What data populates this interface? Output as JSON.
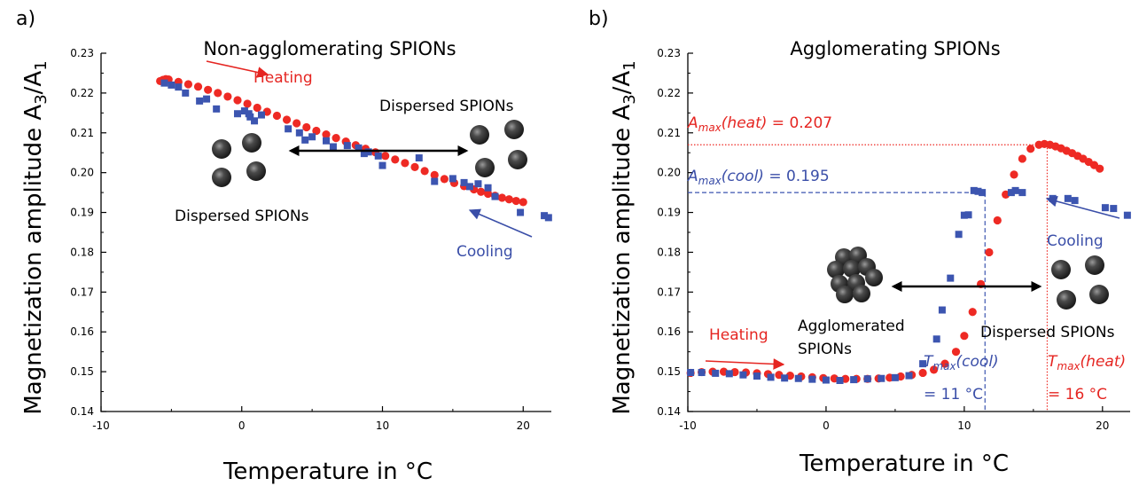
{
  "colors": {
    "heating": "#ee2a24",
    "cooling": "#3c55b0",
    "annotation_red": "#e52521",
    "annotation_blue": "#3a4ea8",
    "sphere_dark": "#1c1c1c",
    "sphere_light": "#9a9a9a"
  },
  "chart_data": [
    {
      "type": "scatter",
      "panel_letter": "a)",
      "title": "Non-agglomerating SPIONs",
      "xlabel": "Temperature in °C",
      "ylabel": "Magnetization amplitude A3/A1",
      "ylabel_parts": {
        "pre": "Magnetization amplitude A",
        "sub1": "3",
        "mid": "/A",
        "sub2": "1"
      },
      "xlim": [
        -10,
        22
      ],
      "ylim": [
        0.14,
        0.23
      ],
      "xticks": [
        -10,
        0,
        10,
        20
      ],
      "xtick_labels": [
        "-10",
        "0",
        "10",
        "20"
      ],
      "yticks": [
        0.14,
        0.15,
        0.16,
        0.17,
        0.18,
        0.19,
        0.2,
        0.21,
        0.22,
        0.23
      ],
      "ytick_labels": [
        "0.14",
        "0.15",
        "0.16",
        "0.17",
        "0.18",
        "0.19",
        "0.20",
        "0.21",
        "0.22",
        "0.23"
      ],
      "grid": false,
      "series": [
        {
          "name": "Heating",
          "marker": "circle",
          "color": "#ee2a24",
          "x": [
            -5.8,
            -5.6,
            -5.4,
            -5.2,
            -4.5,
            -3.8,
            -3.1,
            -2.4,
            -1.7,
            -1.0,
            -0.3,
            0.4,
            1.1,
            1.8,
            2.5,
            3.2,
            3.9,
            4.6,
            5.3,
            6.0,
            6.7,
            7.4,
            8.1,
            8.8,
            9.5,
            10.2,
            10.9,
            11.6,
            12.3,
            13.0,
            13.7,
            14.4,
            15.1,
            15.8,
            16.5,
            17.0,
            17.5,
            18.0,
            18.5,
            19.0,
            19.5,
            20.0
          ],
          "y": [
            0.223,
            0.2233,
            0.2235,
            0.2234,
            0.2228,
            0.2222,
            0.2216,
            0.2208,
            0.22,
            0.2191,
            0.2182,
            0.2173,
            0.2163,
            0.2153,
            0.2143,
            0.2133,
            0.2124,
            0.2114,
            0.2105,
            0.2096,
            0.2087,
            0.2078,
            0.2069,
            0.206,
            0.2051,
            0.2042,
            0.2033,
            0.2024,
            0.2014,
            0.2004,
            0.1994,
            0.1984,
            0.1974,
            0.1966,
            0.1958,
            0.1952,
            0.1947,
            0.1942,
            0.1937,
            0.1933,
            0.1929,
            0.1926
          ]
        },
        {
          "name": "Cooling",
          "marker": "square",
          "color": "#3c55b0",
          "x": [
            21.8,
            21.5,
            19.8,
            18.0,
            17.5,
            16.2,
            16.8,
            15.8,
            15.0,
            13.7,
            12.6,
            10.0,
            9.7,
            9.0,
            8.7,
            8.3,
            7.5,
            6.5,
            6.0,
            5.0,
            4.5,
            4.1,
            3.3,
            1.4,
            0.9,
            0.6,
            0.5,
            0.2,
            -0.3,
            -1.8,
            -2.5,
            -3.0,
            -4.0,
            -4.5,
            -5.0,
            -5.5
          ],
          "y": [
            0.1887,
            0.1892,
            0.19,
            0.194,
            0.1962,
            0.1965,
            0.1972,
            0.1975,
            0.1985,
            0.1978,
            0.2037,
            0.2018,
            0.2042,
            0.2052,
            0.2048,
            0.2062,
            0.2068,
            0.2065,
            0.208,
            0.209,
            0.2082,
            0.21,
            0.211,
            0.2145,
            0.213,
            0.214,
            0.2148,
            0.2155,
            0.2148,
            0.216,
            0.2185,
            0.218,
            0.22,
            0.2215,
            0.222,
            0.2225
          ]
        }
      ],
      "annotations": {
        "heating": "Heating",
        "cooling": "Cooling",
        "dispersed_right": "Dispersed SPIONs",
        "dispersed_left": "Dispersed SPIONs"
      }
    },
    {
      "type": "scatter",
      "panel_letter": "b)",
      "title": "Agglomerating SPIONs",
      "xlabel": "Temperature in °C",
      "ylabel": "Magnetization amplitude A3/A1",
      "ylabel_parts": {
        "pre": "Magnetization amplitude A",
        "sub1": "3",
        "mid": "/A",
        "sub2": "1"
      },
      "xlim": [
        -10,
        22
      ],
      "ylim": [
        0.14,
        0.23
      ],
      "xticks": [
        -10,
        0,
        10,
        20
      ],
      "xtick_labels": [
        "-10",
        "0",
        "10",
        "20"
      ],
      "yticks": [
        0.14,
        0.15,
        0.16,
        0.17,
        0.18,
        0.19,
        0.2,
        0.21,
        0.22,
        0.23
      ],
      "ytick_labels": [
        "0.14",
        "0.15",
        "0.16",
        "0.17",
        "0.18",
        "0.19",
        "0.20",
        "0.21",
        "0.22",
        "0.23"
      ],
      "grid": false,
      "series": [
        {
          "name": "Heating",
          "marker": "circle",
          "color": "#ee2a24",
          "x": [
            -9.8,
            -9.0,
            -8.2,
            -7.4,
            -6.6,
            -5.8,
            -5.0,
            -4.2,
            -3.4,
            -2.6,
            -1.8,
            -1.0,
            -0.2,
            0.6,
            1.4,
            2.2,
            3.0,
            3.8,
            4.6,
            5.4,
            6.2,
            7.0,
            7.8,
            8.6,
            9.4,
            10.0,
            10.6,
            11.2,
            11.8,
            12.4,
            13.0,
            13.6,
            14.2,
            14.8,
            15.4,
            15.8,
            16.2,
            16.6,
            17.0,
            17.4,
            17.8,
            18.2,
            18.6,
            19.0,
            19.4,
            19.8
          ],
          "y": [
            0.1497,
            0.1499,
            0.15,
            0.15,
            0.1499,
            0.1498,
            0.1496,
            0.1494,
            0.1492,
            0.149,
            0.1488,
            0.1486,
            0.1484,
            0.1483,
            0.1482,
            0.1482,
            0.1482,
            0.1483,
            0.1485,
            0.1488,
            0.1492,
            0.1497,
            0.1505,
            0.152,
            0.155,
            0.159,
            0.165,
            0.172,
            0.18,
            0.188,
            0.1945,
            0.1995,
            0.2035,
            0.206,
            0.207,
            0.2072,
            0.207,
            0.2066,
            0.2061,
            0.2055,
            0.2049,
            0.2042,
            0.2035,
            0.2027,
            0.2019,
            0.201
          ]
        },
        {
          "name": "Cooling",
          "marker": "square",
          "color": "#3c55b0",
          "x": [
            21.8,
            20.8,
            20.2,
            18.0,
            17.5,
            16.4,
            14.2,
            13.7,
            13.4,
            11.3,
            11.0,
            10.7,
            10.3,
            10.0,
            9.6,
            9.0,
            8.4,
            8.0,
            7.0,
            6.0,
            5.0,
            4.0,
            3.0,
            2.0,
            1.0,
            0.0,
            -1.0,
            -2.0,
            -3.0,
            -4.0,
            -5.0,
            -6.0,
            -7.0,
            -8.0,
            -9.0,
            -9.8
          ],
          "y": [
            0.1893,
            0.191,
            0.1912,
            0.193,
            0.1935,
            0.1935,
            0.195,
            0.1955,
            0.195,
            0.195,
            0.1953,
            0.1955,
            0.1894,
            0.1893,
            0.1845,
            0.1735,
            0.1655,
            0.1582,
            0.152,
            0.149,
            0.1485,
            0.1483,
            0.1482,
            0.148,
            0.1478,
            0.1479,
            0.1481,
            0.1483,
            0.1484,
            0.1486,
            0.1489,
            0.1492,
            0.1495,
            0.1496,
            0.1498,
            0.1498
          ]
        }
      ],
      "reference_lines": {
        "amax_heat": 0.207,
        "amax_cool": 0.195,
        "tmax_heat": 16,
        "tmax_cool": 11.5
      },
      "annotations": {
        "amax_heat_sym": "A",
        "amax_heat_sub": "max",
        "amax_heat_arg": "(heat)",
        "amax_heat_val": " = 0.207",
        "amax_cool_sym": "A",
        "amax_cool_sub": "max",
        "amax_cool_arg": "(cool)",
        "amax_cool_val": " = 0.195",
        "tmax_cool_sym": "T",
        "tmax_cool_sub": "max",
        "tmax_cool_arg": "(cool)",
        "tmax_cool_val": "= 11 °C",
        "tmax_heat_sym": "T",
        "tmax_heat_sub": "max",
        "tmax_heat_arg": "(heat)",
        "tmax_heat_val": "= 16 °C",
        "heating": "Heating",
        "cooling": "Cooling",
        "agglomerated_1": "Agglomerated",
        "agglomerated_2": "SPIONs",
        "dispersed": "Dispersed SPIONs"
      }
    }
  ]
}
